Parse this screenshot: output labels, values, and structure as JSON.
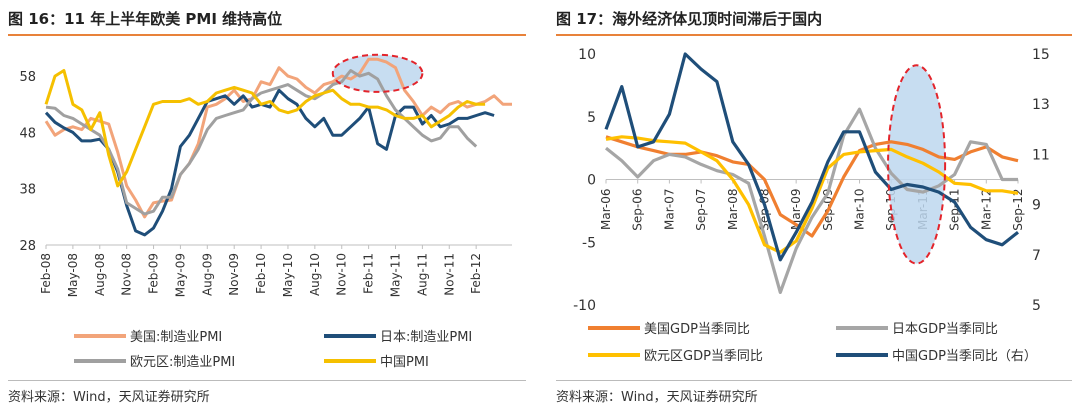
{
  "left": {
    "title": "图 16：11 年上半年欧美 PMI 维持高位",
    "source": "资料来源：Wind，天风证券研究所"
  },
  "right": {
    "title": "图 17：海外经济体见顶时间滞后于国内",
    "source": "资料来源：Wind，天风证券研究所"
  },
  "chart_data": [
    {
      "type": "line",
      "title": "图 16：11 年上半年欧美 PMI 维持高位",
      "ylim": [
        28,
        63
      ],
      "yticks": [
        28,
        38,
        48,
        58
      ],
      "xlim": [
        0,
        59
      ],
      "x_tick_labels": [
        "Feb-08",
        "May-08",
        "Aug-08",
        "Nov-08",
        "Feb-09",
        "May-09",
        "Aug-09",
        "Nov-09",
        "Feb-10",
        "May-10",
        "Aug-10",
        "Nov-10",
        "Feb-11",
        "May-11",
        "Aug-11",
        "Nov-11",
        "Feb-12"
      ],
      "x_tick_positions": [
        0,
        3,
        6,
        9,
        12,
        15,
        18,
        21,
        24,
        27,
        30,
        33,
        36,
        39,
        42,
        45,
        48
      ],
      "grid": false,
      "legend_placement": "bottom",
      "highlight_ellipse": {
        "x_from": 32,
        "x_to": 42,
        "y_center": 58.5,
        "y_half": 3.3
      },
      "series": [
        {
          "name": "美国:制造业PMI",
          "color": "#f2a47a",
          "values": [
            50,
            47.5,
            48.5,
            49,
            48.5,
            50.5,
            50,
            49.5,
            44.5,
            38.5,
            36,
            33,
            35.5,
            35.8,
            36,
            40.5,
            42.5,
            46,
            52.5,
            53,
            54,
            55.5,
            53.5,
            54,
            57,
            56.5,
            59.5,
            58,
            57.5,
            56,
            55,
            56.5,
            57,
            58,
            57.5,
            58.5,
            61,
            61,
            60.5,
            59.5,
            55.5,
            53.5,
            51,
            52.5,
            51.5,
            53,
            53.5,
            52.5,
            53,
            53.5,
            54.5,
            53,
            53
          ]
        },
        {
          "name": "日本:制造业PMI",
          "color": "#1f4e79",
          "values": [
            51.5,
            49.8,
            48.8,
            48,
            46.5,
            46.5,
            46.8,
            45,
            41,
            35,
            30.5,
            29.8,
            31,
            34,
            38,
            45.5,
            47.5,
            50.5,
            53.5,
            54,
            54.5,
            53,
            54.5,
            52.5,
            53,
            52.5,
            55.5,
            54,
            53,
            50.5,
            49,
            50.5,
            47.5,
            47.5,
            49,
            50.5,
            52.5,
            46,
            45,
            51,
            52.5,
            52.5,
            49.5,
            51,
            49,
            49.5,
            50.5,
            50.5,
            51,
            51.5,
            51
          ]
        },
        {
          "name": "欧元区:制造业PMI",
          "color": "#a0a0a0",
          "values": [
            52.5,
            52.3,
            51,
            50.5,
            49.5,
            48.5,
            47.5,
            45,
            41.5,
            35.5,
            34.5,
            33.5,
            34,
            36.5,
            36.5,
            40.5,
            42.5,
            45,
            48.5,
            50.5,
            51,
            51.5,
            52,
            54,
            55,
            55.5,
            56,
            56.5,
            55.5,
            54.5,
            54,
            55,
            56.5,
            57,
            59,
            58,
            58.5,
            57.5,
            54.5,
            52,
            50.5,
            49,
            47.5,
            46.5,
            47,
            49,
            49,
            47,
            45.5
          ]
        },
        {
          "name": "中国PMI",
          "color": "#f5c000",
          "values": [
            53,
            58,
            59,
            53,
            52,
            48.5,
            51.5,
            44,
            38.5,
            41,
            45,
            49,
            53,
            53.5,
            53.5,
            53.5,
            54,
            53,
            53.5,
            55,
            55.5,
            56,
            55.5,
            55,
            53,
            53.5,
            52,
            51.5,
            52,
            53.5,
            54.5,
            55,
            55.5,
            54,
            53,
            53,
            52.5,
            52.5,
            52,
            51,
            50.5,
            50.5,
            51,
            49,
            50,
            51,
            52.5,
            53.5,
            53,
            53
          ]
        }
      ]
    },
    {
      "type": "line",
      "title": "图 17：海外经济体见顶时间滞后于国内",
      "ylim": [
        -10,
        10
      ],
      "yticks": [
        -10,
        -5,
        0,
        5,
        10
      ],
      "y2lim": [
        5,
        15
      ],
      "y2ticks": [
        5,
        7,
        9,
        11,
        13,
        15
      ],
      "x_tick_labels": [
        "Mar-06",
        "Sep-06",
        "Mar-07",
        "Sep-07",
        "Mar-08",
        "Sep-08",
        "Mar-09",
        "Sep-09",
        "Mar-10",
        "Sep-10",
        "Mar-11",
        "Sep-11",
        "Mar-12",
        "Sep-12"
      ],
      "x_tick_positions": [
        0,
        2,
        4,
        6,
        8,
        10,
        12,
        14,
        16,
        18,
        20,
        22,
        24,
        26
      ],
      "grid": false,
      "legend_placement": "bottom",
      "highlight_ellipse": {
        "x_from": 17.8,
        "x_to": 21.4,
        "y_center": 1.2,
        "y_half": 7.9
      },
      "series": [
        {
          "name": "美国GDP当季同比",
          "color": "#f07f30",
          "axis": "left",
          "values": [
            3.4,
            3,
            2.6,
            2.3,
            2.0,
            2.0,
            2.2,
            1.9,
            1.4,
            1.2,
            0,
            -2.8,
            -3.6,
            -4.5,
            -2.5,
            0.2,
            2.3,
            2.8,
            3.0,
            2.8,
            2.4,
            1.8,
            1.6,
            2.2,
            2.6,
            1.8,
            1.5
          ]
        },
        {
          "name": "日本GDP当季同比",
          "color": "#a6a6a6",
          "axis": "left",
          "values": [
            2.5,
            1.5,
            0.2,
            1.5,
            2,
            1.8,
            1.2,
            0.7,
            0.4,
            -0.3,
            -4.5,
            -9,
            -5.5,
            -3,
            -1.1,
            3.5,
            5.6,
            2.5,
            0.5,
            -0.8,
            -1,
            -0.5,
            0.4,
            3,
            2.8,
            0,
            0
          ]
        },
        {
          "name": "欧元区GDP当季同比",
          "color": "#ffc000",
          "axis": "left",
          "values": [
            3.2,
            3.4,
            3.3,
            3.1,
            3.0,
            2.9,
            2.2,
            1.5,
            0,
            -2,
            -5.2,
            -5.8,
            -4.9,
            -2.3,
            0.9,
            2,
            2.2,
            2.3,
            2.4,
            1.8,
            1.3,
            0.6,
            -0.3,
            -0.4,
            -0.9,
            -0.9,
            -1.1
          ]
        },
        {
          "name": "中国GDP当季同比（右）",
          "color": "#1f4e79",
          "axis": "right",
          "values": [
            12,
            13.7,
            11.3,
            11.5,
            12.6,
            15,
            14.4,
            13.9,
            11.5,
            10.6,
            9.0,
            6.8,
            7.9,
            9.1,
            10.7,
            11.9,
            11.9,
            10.3,
            9.6,
            9.8,
            9.7,
            9.5,
            9.1,
            8.1,
            7.6,
            7.4,
            7.9
          ]
        }
      ]
    }
  ]
}
